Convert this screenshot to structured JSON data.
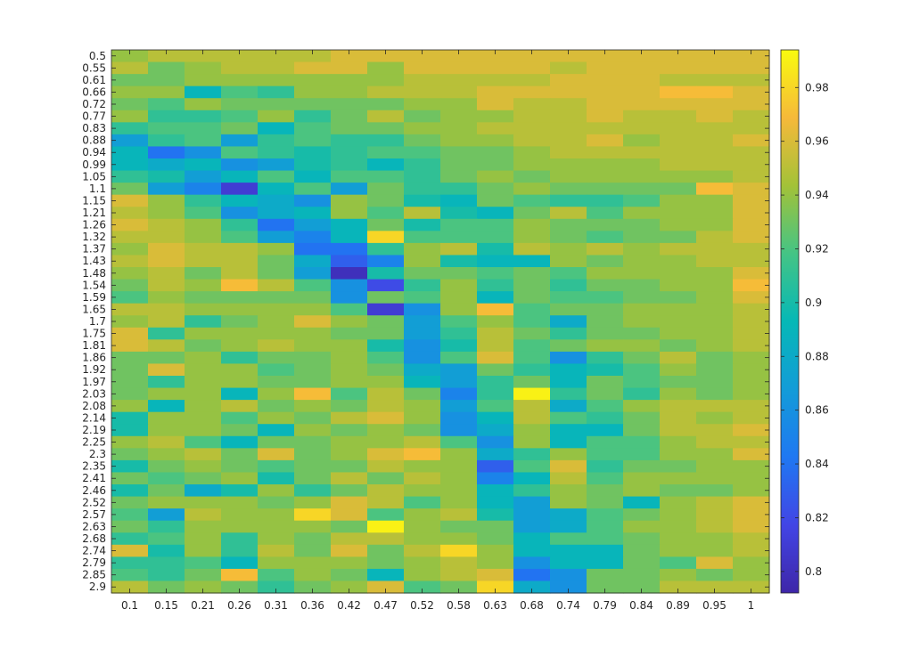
{
  "chart_data": {
    "type": "heatmap",
    "title": "",
    "xlabel": "",
    "ylabel": "",
    "colormap": "parula",
    "clim": [
      0.792,
      0.994
    ],
    "x_tick_labels": [
      "0.1",
      "0.15",
      "0.21",
      "0.26",
      "0.31",
      "0.36",
      "0.42",
      "0.47",
      "0.52",
      "0.58",
      "0.63",
      "0.68",
      "0.74",
      "0.79",
      "0.84",
      "0.89",
      "0.95",
      "1"
    ],
    "y_tick_labels": [
      "0.5",
      "0.55",
      "0.61",
      "0.66",
      "0.72",
      "0.77",
      "0.83",
      "0.88",
      "0.94",
      "0.99",
      "1.05",
      "1.1",
      "1.15",
      "1.21",
      "1.26",
      "1.32",
      "1.37",
      "1.43",
      "1.48",
      "1.54",
      "1.59",
      "1.65",
      "1.7",
      "1.75",
      "1.81",
      "1.86",
      "1.92",
      "1.97",
      "2.03",
      "2.08",
      "2.14",
      "2.19",
      "2.25",
      "2.3",
      "2.35",
      "2.41",
      "2.46",
      "2.52",
      "2.57",
      "2.63",
      "2.68",
      "2.74",
      "2.79",
      "2.85",
      "2.9"
    ],
    "colorbar_ticks": [
      "0.8",
      "0.82",
      "0.84",
      "0.86",
      "0.88",
      "0.9",
      "0.92",
      "0.94",
      "0.96",
      "0.98"
    ],
    "z": [
      [
        0.94,
        0.95,
        0.95,
        0.95,
        0.95,
        0.95,
        0.96,
        0.96,
        0.96,
        0.96,
        0.96,
        0.96,
        0.96,
        0.96,
        0.96,
        0.96,
        0.96,
        0.96
      ],
      [
        0.95,
        0.93,
        0.94,
        0.95,
        0.95,
        0.96,
        0.96,
        0.94,
        0.96,
        0.96,
        0.96,
        0.96,
        0.95,
        0.96,
        0.96,
        0.96,
        0.96,
        0.96
      ],
      [
        0.93,
        0.93,
        0.94,
        0.94,
        0.94,
        0.94,
        0.94,
        0.94,
        0.95,
        0.95,
        0.95,
        0.95,
        0.96,
        0.96,
        0.96,
        0.95,
        0.95,
        0.95
      ],
      [
        0.94,
        0.94,
        0.89,
        0.92,
        0.91,
        0.94,
        0.94,
        0.95,
        0.95,
        0.95,
        0.96,
        0.96,
        0.96,
        0.96,
        0.96,
        0.97,
        0.97,
        0.96
      ],
      [
        0.93,
        0.92,
        0.94,
        0.93,
        0.93,
        0.93,
        0.93,
        0.93,
        0.94,
        0.94,
        0.96,
        0.95,
        0.95,
        0.96,
        0.96,
        0.96,
        0.96,
        0.96
      ],
      [
        0.94,
        0.91,
        0.91,
        0.92,
        0.94,
        0.91,
        0.93,
        0.95,
        0.93,
        0.94,
        0.94,
        0.95,
        0.95,
        0.96,
        0.95,
        0.95,
        0.96,
        0.95
      ],
      [
        0.91,
        0.92,
        0.92,
        0.93,
        0.89,
        0.92,
        0.93,
        0.93,
        0.94,
        0.94,
        0.95,
        0.95,
        0.95,
        0.95,
        0.95,
        0.95,
        0.95,
        0.95
      ],
      [
        0.87,
        0.91,
        0.92,
        0.87,
        0.91,
        0.92,
        0.91,
        0.91,
        0.93,
        0.94,
        0.94,
        0.95,
        0.95,
        0.96,
        0.94,
        0.95,
        0.95,
        0.96
      ],
      [
        0.89,
        0.84,
        0.86,
        0.92,
        0.91,
        0.9,
        0.91,
        0.92,
        0.92,
        0.93,
        0.93,
        0.94,
        0.95,
        0.95,
        0.95,
        0.95,
        0.95,
        0.95
      ],
      [
        0.89,
        0.88,
        0.89,
        0.86,
        0.87,
        0.9,
        0.91,
        0.89,
        0.91,
        0.93,
        0.93,
        0.94,
        0.94,
        0.94,
        0.94,
        0.95,
        0.95,
        0.95
      ],
      [
        0.91,
        0.9,
        0.87,
        0.89,
        0.92,
        0.89,
        0.92,
        0.92,
        0.91,
        0.93,
        0.94,
        0.93,
        0.94,
        0.94,
        0.94,
        0.94,
        0.94,
        0.95
      ],
      [
        0.93,
        0.87,
        0.85,
        0.81,
        0.89,
        0.92,
        0.87,
        0.93,
        0.91,
        0.91,
        0.93,
        0.94,
        0.93,
        0.93,
        0.93,
        0.93,
        0.97,
        0.96
      ],
      [
        0.96,
        0.94,
        0.91,
        0.89,
        0.88,
        0.86,
        0.94,
        0.93,
        0.9,
        0.89,
        0.93,
        0.92,
        0.91,
        0.91,
        0.92,
        0.94,
        0.94,
        0.96
      ],
      [
        0.95,
        0.94,
        0.92,
        0.86,
        0.88,
        0.89,
        0.94,
        0.92,
        0.95,
        0.9,
        0.89,
        0.93,
        0.95,
        0.92,
        0.94,
        0.94,
        0.94,
        0.96
      ],
      [
        0.96,
        0.95,
        0.94,
        0.91,
        0.84,
        0.87,
        0.89,
        0.93,
        0.9,
        0.92,
        0.92,
        0.94,
        0.93,
        0.93,
        0.93,
        0.94,
        0.94,
        0.96
      ],
      [
        0.95,
        0.95,
        0.94,
        0.92,
        0.87,
        0.85,
        0.89,
        0.98,
        0.92,
        0.92,
        0.92,
        0.94,
        0.93,
        0.92,
        0.93,
        0.93,
        0.95,
        0.96
      ],
      [
        0.94,
        0.96,
        0.95,
        0.95,
        0.94,
        0.84,
        0.84,
        0.91,
        0.94,
        0.95,
        0.9,
        0.95,
        0.94,
        0.95,
        0.94,
        0.95,
        0.95,
        0.95
      ],
      [
        0.95,
        0.96,
        0.95,
        0.95,
        0.93,
        0.88,
        0.83,
        0.85,
        0.94,
        0.9,
        0.89,
        0.89,
        0.94,
        0.93,
        0.94,
        0.94,
        0.95,
        0.95
      ],
      [
        0.94,
        0.95,
        0.93,
        0.95,
        0.93,
        0.87,
        0.8,
        0.9,
        0.93,
        0.93,
        0.92,
        0.93,
        0.92,
        0.94,
        0.94,
        0.94,
        0.94,
        0.96
      ],
      [
        0.93,
        0.95,
        0.94,
        0.97,
        0.95,
        0.92,
        0.86,
        0.82,
        0.91,
        0.94,
        0.91,
        0.93,
        0.91,
        0.93,
        0.93,
        0.94,
        0.94,
        0.97
      ],
      [
        0.92,
        0.94,
        0.93,
        0.93,
        0.93,
        0.93,
        0.86,
        0.93,
        0.92,
        0.94,
        0.89,
        0.93,
        0.92,
        0.92,
        0.93,
        0.93,
        0.94,
        0.96
      ],
      [
        0.95,
        0.95,
        0.94,
        0.94,
        0.94,
        0.94,
        0.92,
        0.81,
        0.86,
        0.94,
        0.97,
        0.92,
        0.93,
        0.93,
        0.94,
        0.94,
        0.94,
        0.95
      ],
      [
        0.94,
        0.95,
        0.91,
        0.93,
        0.94,
        0.96,
        0.94,
        0.93,
        0.87,
        0.92,
        0.94,
        0.92,
        0.88,
        0.93,
        0.94,
        0.94,
        0.94,
        0.95
      ],
      [
        0.96,
        0.91,
        0.94,
        0.94,
        0.94,
        0.94,
        0.93,
        0.93,
        0.87,
        0.91,
        0.95,
        0.93,
        0.91,
        0.93,
        0.93,
        0.94,
        0.94,
        0.95
      ],
      [
        0.96,
        0.95,
        0.93,
        0.94,
        0.95,
        0.94,
        0.94,
        0.9,
        0.86,
        0.9,
        0.95,
        0.92,
        0.93,
        0.94,
        0.94,
        0.93,
        0.94,
        0.95
      ],
      [
        0.93,
        0.93,
        0.94,
        0.91,
        0.93,
        0.93,
        0.94,
        0.92,
        0.86,
        0.92,
        0.96,
        0.92,
        0.86,
        0.91,
        0.93,
        0.95,
        0.93,
        0.94
      ],
      [
        0.93,
        0.96,
        0.94,
        0.94,
        0.92,
        0.93,
        0.94,
        0.93,
        0.88,
        0.87,
        0.93,
        0.91,
        0.89,
        0.9,
        0.92,
        0.94,
        0.93,
        0.94
      ],
      [
        0.93,
        0.91,
        0.94,
        0.94,
        0.93,
        0.93,
        0.94,
        0.94,
        0.89,
        0.87,
        0.91,
        0.93,
        0.89,
        0.93,
        0.92,
        0.93,
        0.93,
        0.94
      ],
      [
        0.93,
        0.94,
        0.94,
        0.89,
        0.94,
        0.97,
        0.92,
        0.95,
        0.93,
        0.85,
        0.91,
        0.99,
        0.91,
        0.93,
        0.91,
        0.94,
        0.93,
        0.94
      ],
      [
        0.94,
        0.89,
        0.94,
        0.95,
        0.93,
        0.94,
        0.93,
        0.95,
        0.94,
        0.87,
        0.92,
        0.95,
        0.88,
        0.92,
        0.94,
        0.95,
        0.95,
        0.95
      ],
      [
        0.9,
        0.94,
        0.94,
        0.92,
        0.94,
        0.93,
        0.95,
        0.96,
        0.94,
        0.86,
        0.89,
        0.95,
        0.92,
        0.91,
        0.93,
        0.95,
        0.94,
        0.95
      ],
      [
        0.9,
        0.94,
        0.94,
        0.93,
        0.89,
        0.94,
        0.93,
        0.94,
        0.93,
        0.86,
        0.88,
        0.94,
        0.89,
        0.89,
        0.93,
        0.95,
        0.95,
        0.96
      ],
      [
        0.94,
        0.95,
        0.92,
        0.89,
        0.93,
        0.93,
        0.94,
        0.94,
        0.95,
        0.92,
        0.86,
        0.94,
        0.89,
        0.92,
        0.92,
        0.94,
        0.95,
        0.95
      ],
      [
        0.93,
        0.94,
        0.95,
        0.93,
        0.96,
        0.93,
        0.94,
        0.96,
        0.97,
        0.94,
        0.88,
        0.91,
        0.94,
        0.92,
        0.92,
        0.94,
        0.94,
        0.96
      ],
      [
        0.9,
        0.93,
        0.94,
        0.93,
        0.92,
        0.93,
        0.93,
        0.95,
        0.94,
        0.94,
        0.83,
        0.92,
        0.96,
        0.91,
        0.93,
        0.93,
        0.94,
        0.94
      ],
      [
        0.93,
        0.92,
        0.93,
        0.94,
        0.9,
        0.93,
        0.95,
        0.93,
        0.95,
        0.94,
        0.85,
        0.89,
        0.95,
        0.92,
        0.94,
        0.94,
        0.94,
        0.94
      ],
      [
        0.9,
        0.93,
        0.88,
        0.9,
        0.94,
        0.91,
        0.93,
        0.95,
        0.94,
        0.94,
        0.89,
        0.91,
        0.94,
        0.93,
        0.94,
        0.93,
        0.93,
        0.94
      ],
      [
        0.93,
        0.94,
        0.94,
        0.94,
        0.93,
        0.94,
        0.96,
        0.95,
        0.92,
        0.94,
        0.89,
        0.87,
        0.94,
        0.93,
        0.89,
        0.94,
        0.95,
        0.96
      ],
      [
        0.92,
        0.87,
        0.95,
        0.94,
        0.94,
        0.98,
        0.96,
        0.92,
        0.94,
        0.95,
        0.9,
        0.87,
        0.88,
        0.92,
        0.93,
        0.94,
        0.95,
        0.96
      ],
      [
        0.93,
        0.91,
        0.94,
        0.94,
        0.94,
        0.94,
        0.93,
        0.99,
        0.94,
        0.93,
        0.93,
        0.87,
        0.88,
        0.92,
        0.94,
        0.94,
        0.95,
        0.96
      ],
      [
        0.91,
        0.92,
        0.94,
        0.91,
        0.94,
        0.93,
        0.95,
        0.95,
        0.94,
        0.94,
        0.93,
        0.89,
        0.92,
        0.92,
        0.93,
        0.94,
        0.94,
        0.95
      ],
      [
        0.96,
        0.9,
        0.94,
        0.91,
        0.95,
        0.93,
        0.96,
        0.93,
        0.95,
        0.98,
        0.94,
        0.89,
        0.89,
        0.89,
        0.93,
        0.94,
        0.94,
        0.95
      ],
      [
        0.91,
        0.91,
        0.92,
        0.89,
        0.94,
        0.94,
        0.94,
        0.93,
        0.94,
        0.95,
        0.94,
        0.86,
        0.89,
        0.89,
        0.93,
        0.92,
        0.96,
        0.94
      ],
      [
        0.92,
        0.91,
        0.93,
        0.97,
        0.92,
        0.94,
        0.93,
        0.89,
        0.94,
        0.95,
        0.96,
        0.84,
        0.86,
        0.93,
        0.93,
        0.94,
        0.93,
        0.94
      ],
      [
        0.95,
        0.93,
        0.94,
        0.93,
        0.91,
        0.93,
        0.94,
        0.96,
        0.92,
        0.93,
        0.98,
        0.88,
        0.86,
        0.93,
        0.93,
        0.95,
        0.95,
        0.95
      ]
    ]
  }
}
